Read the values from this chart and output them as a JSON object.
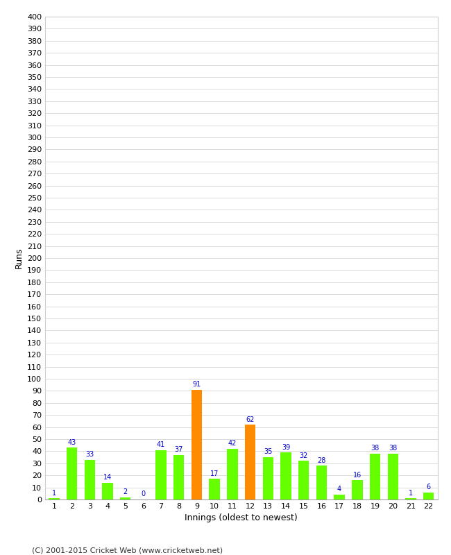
{
  "innings": [
    1,
    2,
    3,
    4,
    5,
    6,
    7,
    8,
    9,
    10,
    11,
    12,
    13,
    14,
    15,
    16,
    17,
    18,
    19,
    20,
    21,
    22
  ],
  "runs": [
    1,
    43,
    33,
    14,
    2,
    0,
    41,
    37,
    91,
    17,
    42,
    62,
    35,
    39,
    32,
    28,
    4,
    16,
    38,
    38,
    1,
    6
  ],
  "bar_colors": [
    "#66ff00",
    "#66ff00",
    "#66ff00",
    "#66ff00",
    "#66ff00",
    "#66ff00",
    "#66ff00",
    "#66ff00",
    "#ff8c00",
    "#66ff00",
    "#66ff00",
    "#ff8c00",
    "#66ff00",
    "#66ff00",
    "#66ff00",
    "#66ff00",
    "#66ff00",
    "#66ff00",
    "#66ff00",
    "#66ff00",
    "#66ff00",
    "#66ff00"
  ],
  "xlabel": "Innings (oldest to newest)",
  "ylabel": "Runs",
  "ylim": [
    0,
    400
  ],
  "background_color": "#ffffff",
  "grid_color": "#cccccc",
  "label_color": "#0000cc",
  "label_fontsize": 7,
  "axis_tick_fontsize": 8,
  "axis_label_fontsize": 9,
  "footer": "(C) 2001-2015 Cricket Web (www.cricketweb.net)",
  "footer_fontsize": 8
}
